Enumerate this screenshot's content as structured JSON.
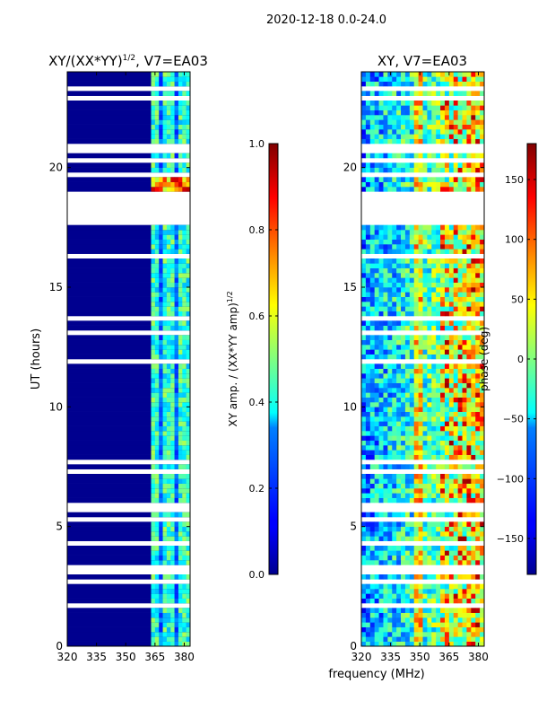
{
  "figure": {
    "suptitle": "2020-12-18 0.0-24.0",
    "xlabel": "frequency (MHz)"
  },
  "chart_data": [
    {
      "type": "heatmap",
      "title": "XY/(XX*YY)¹ᐟ², V7=EA03",
      "title_base": "XY/(XX*YY)",
      "title_sup": "1/2",
      "title_rest": ", V7=EA03",
      "xlabel": "",
      "ylabel": "UT (hours)",
      "xlim": [
        320,
        383
      ],
      "ylim": [
        0,
        24
      ],
      "xticks": [
        320,
        335,
        350,
        365,
        380
      ],
      "yticks": [
        0,
        5,
        10,
        15,
        20
      ],
      "colormap": "jet",
      "colorbar": {
        "label": "XY amp. / (XX*YY amp)^1/2",
        "label_base": "XY amp. / (XX*YY amp)",
        "label_sup": "1/2",
        "range": [
          0.0,
          1.0
        ],
        "ticks": [
          0.0,
          0.2,
          0.4,
          0.6,
          0.8,
          1.0
        ],
        "tick_labels": [
          "0.0",
          "0.2",
          "0.4",
          "0.6",
          "0.8",
          "1.0"
        ]
      },
      "data_gap_ut": [
        17.7,
        19.0
      ],
      "bright_band_mhz": [
        363,
        383
      ],
      "colors": {
        "low": "#00008f",
        "mid": "#00ffff",
        "high": "#800000"
      }
    },
    {
      "type": "heatmap",
      "title": "XY, V7=EA03",
      "xlabel": "",
      "ylabel": "",
      "xlim": [
        320,
        383
      ],
      "ylim": [
        0,
        24
      ],
      "xticks": [
        320,
        335,
        350,
        365,
        380
      ],
      "yticks": [
        0,
        5,
        10,
        15,
        20
      ],
      "colormap": "jet",
      "colorbar": {
        "label": "phase (deg)",
        "range": [
          -180,
          180
        ],
        "ticks": [
          -150,
          -100,
          -50,
          0,
          50,
          100,
          150
        ],
        "tick_labels": [
          "−150",
          "−100",
          "−50",
          "0",
          "50",
          "100",
          "150"
        ]
      },
      "data_gap_ut": [
        17.7,
        19.0
      ],
      "colors": {
        "low": "#00008f",
        "mid": "#00ffff",
        "high": "#800000"
      }
    }
  ]
}
